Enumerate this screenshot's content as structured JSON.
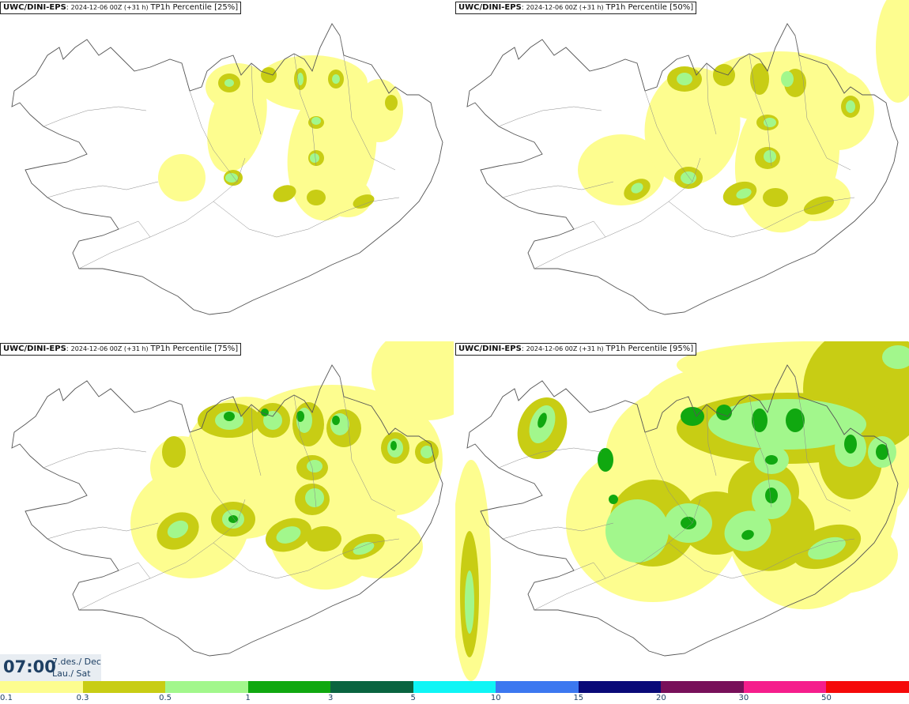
{
  "panels": [
    {
      "model": "UWC/DINI-EPS",
      "init": "2024-12-06 00Z (+31 h)",
      "label": "TP1h Percentile [25%]"
    },
    {
      "model": "UWC/DINI-EPS",
      "init": "2024-12-06 00Z (+31 h)",
      "label": "TP1h Percentile [50%]"
    },
    {
      "model": "UWC/DINI-EPS",
      "init": "2024-12-06 00Z (+31 h)",
      "label": "TP1h Percentile [75%]"
    },
    {
      "model": "UWC/DINI-EPS",
      "init": "2024-12-06 00Z (+31 h)",
      "label": "TP1h Percentile [95%]"
    }
  ],
  "time": {
    "clock": "07:00",
    "date_line": "7.des./ Dec",
    "day_line": "Lau./ Sat"
  },
  "legend": {
    "colors": [
      "#fdfd8f",
      "#c8cd14",
      "#a2f78c",
      "#10a810",
      "#0a6440",
      "#0ff5f5",
      "#3c78f0",
      "#0a0a78",
      "#78105a",
      "#f51e8c",
      "#f50a0a"
    ],
    "ticks": [
      "0.1",
      "0.3",
      "0.5",
      "1",
      "3",
      "5",
      "10",
      "15",
      "20",
      "30",
      "50"
    ]
  },
  "colors": {
    "light_yellow": "#fdfd8f",
    "olive": "#c8cd14",
    "light_green": "#a2f78c",
    "green": "#10a810",
    "coast": "#555555"
  }
}
